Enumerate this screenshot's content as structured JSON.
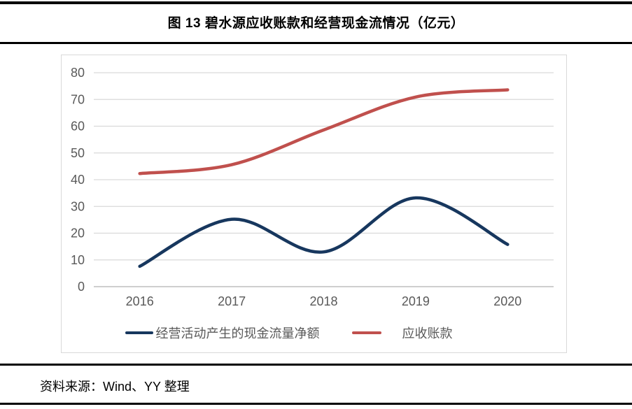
{
  "page": {
    "title": "图 13 碧水源应收账款和经营现金流情况（亿元）",
    "source_note": "资料来源：Wind、YY 整理"
  },
  "chart_data": {
    "type": "line",
    "title": "图 13 碧水源应收账款和经营现金流情况（亿元）",
    "unit": "亿元",
    "categories": [
      "2016",
      "2017",
      "2018",
      "2019",
      "2020"
    ],
    "series": [
      {
        "name": "经营活动产生的现金流量净额",
        "color": "#17375E",
        "values": [
          7.6,
          25.2,
          13.0,
          33.2,
          15.8
        ]
      },
      {
        "name": "应收账款",
        "color": "#C0504D",
        "values": [
          42.3,
          45.6,
          58.6,
          70.9,
          73.6
        ]
      }
    ],
    "ylim": [
      0,
      80
    ],
    "yticks": [
      0,
      10,
      20,
      30,
      40,
      50,
      60,
      70,
      80
    ],
    "xlabel": "",
    "ylabel": "",
    "grid": true,
    "smooth": true,
    "legend_position": "bottom",
    "colors": {
      "gridline": "#D9D9D9",
      "axis_line": "#BFBFBF",
      "tick_label": "#595959",
      "rule": "#000000"
    }
  }
}
